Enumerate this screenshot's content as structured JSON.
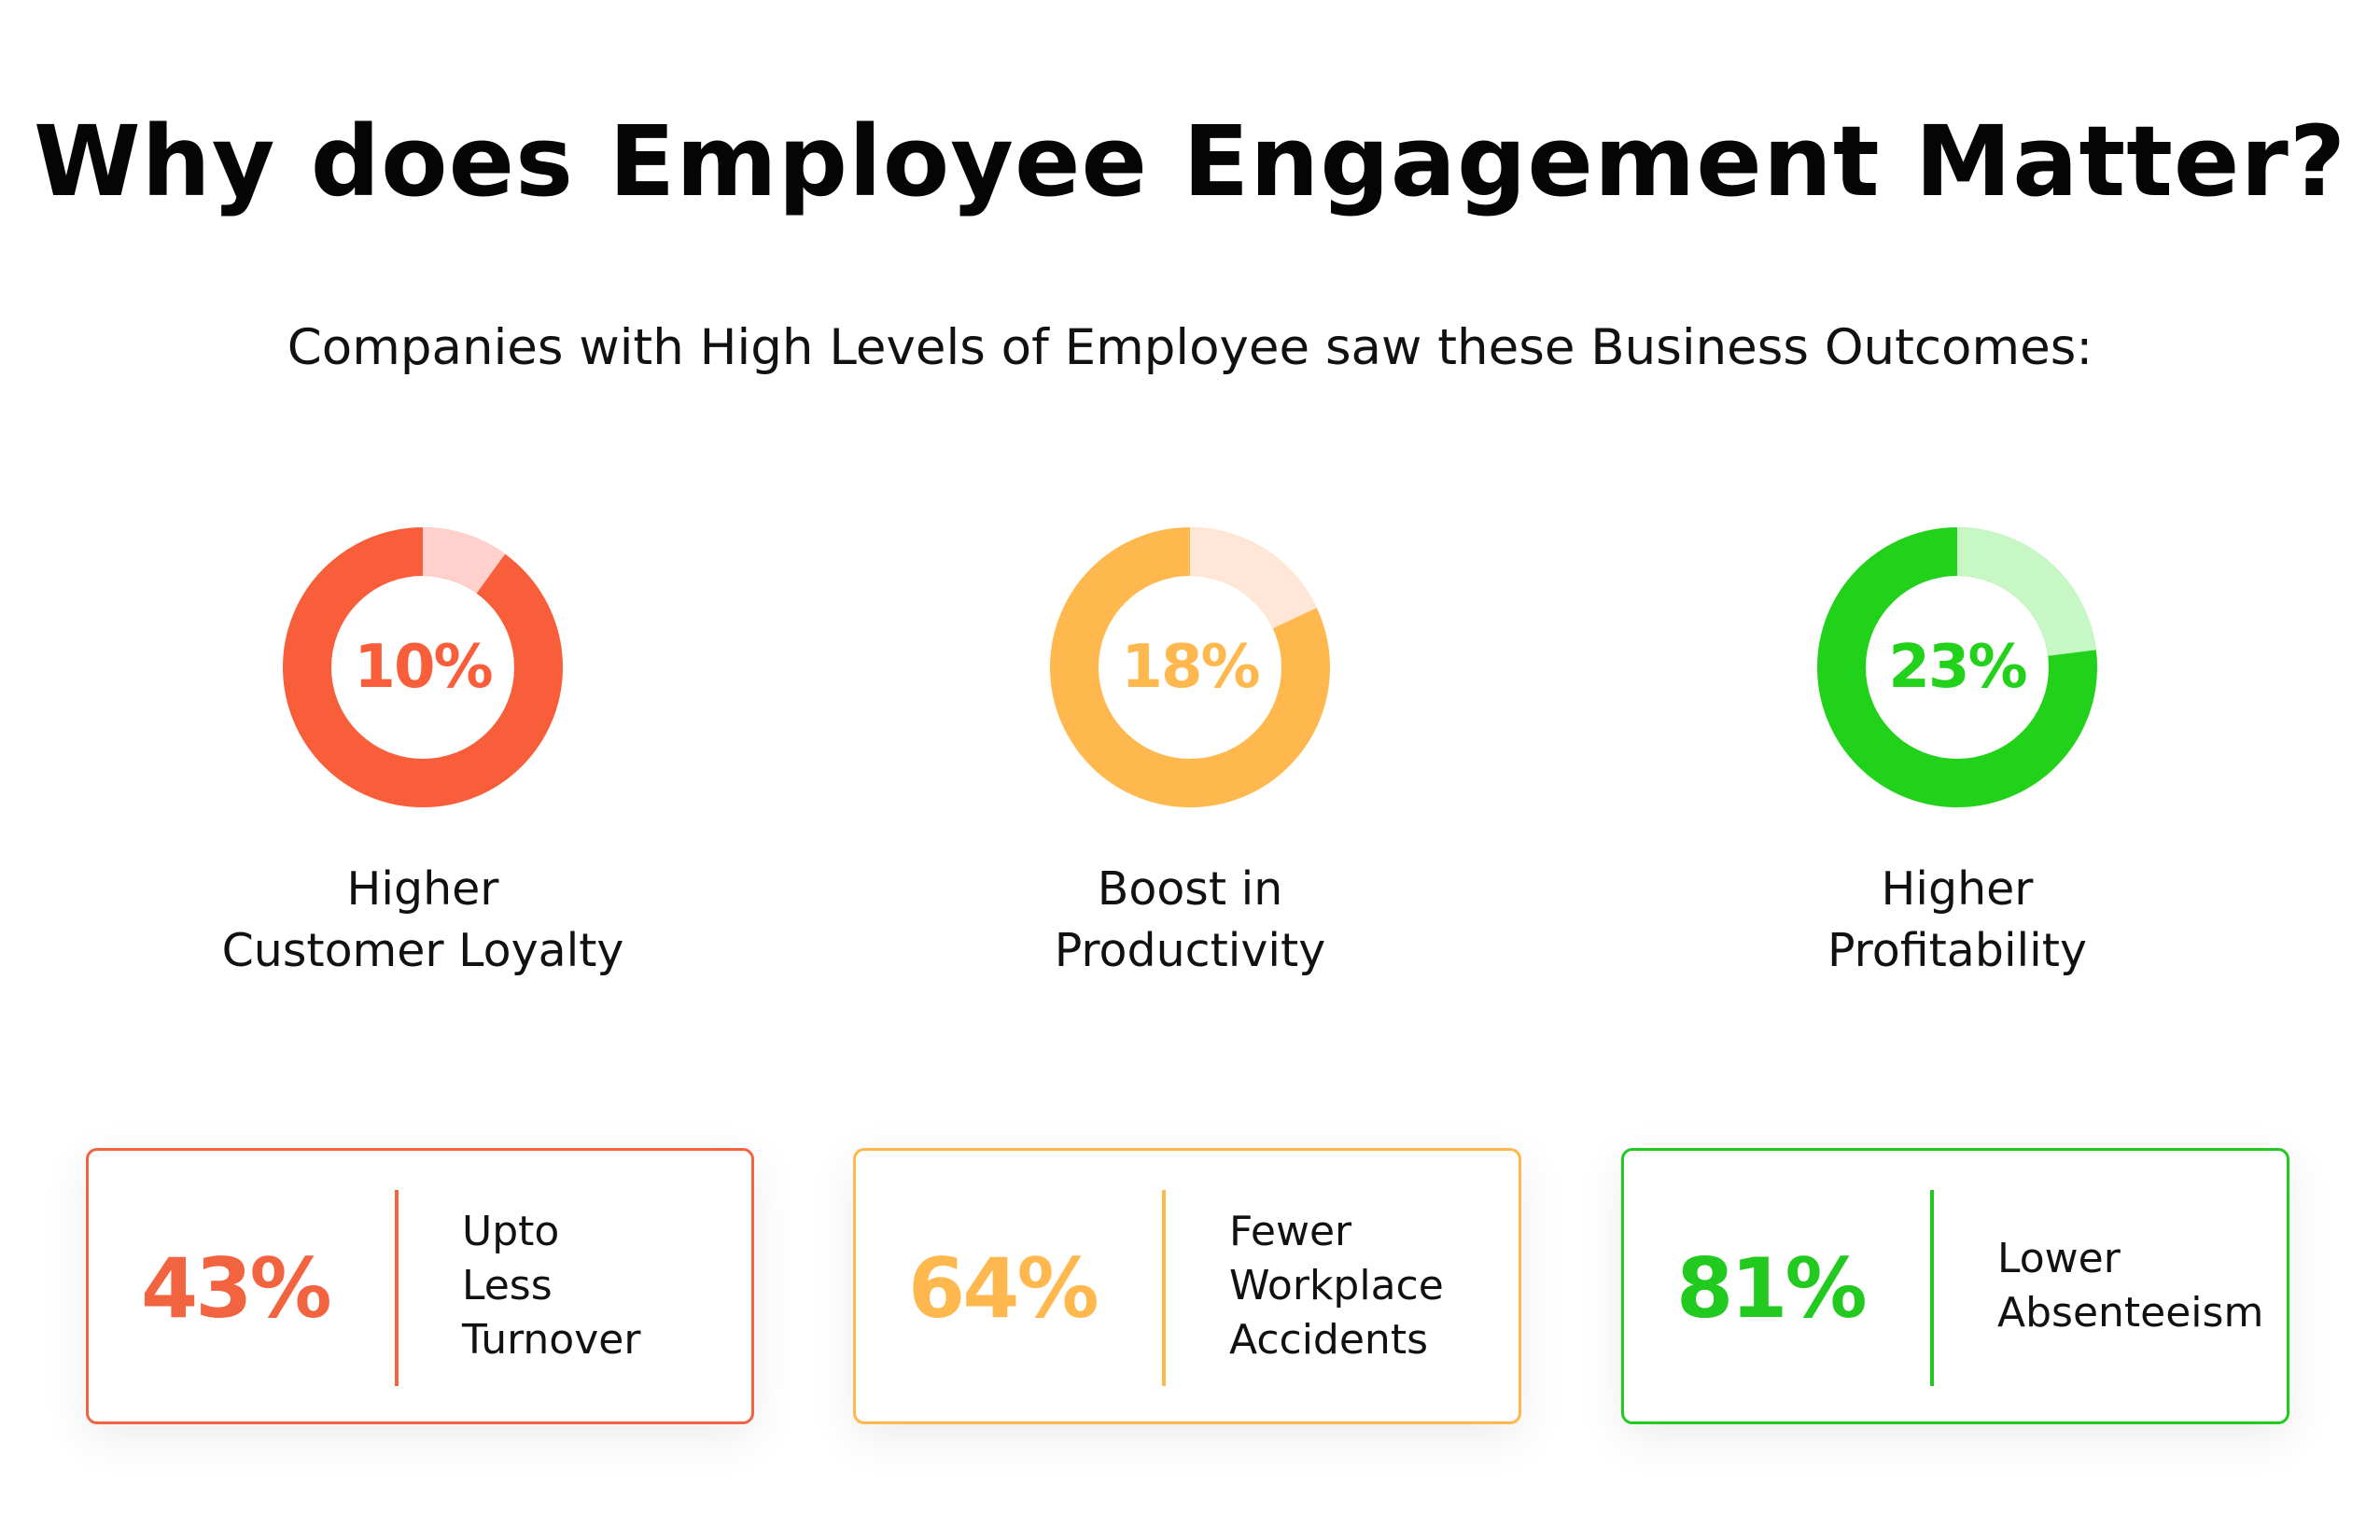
{
  "title": "Why does Employee Engagement Matter?",
  "subtitle": "Companies with High Levels of Employee saw these Business Outcomes:",
  "donuts": [
    {
      "value": "10%",
      "percent": 10,
      "label_lines": [
        "Higher",
        "Customer Loyalty"
      ],
      "color": "#F95E3A",
      "light_color": "#FFD0CC"
    },
    {
      "value": "18%",
      "percent": 18,
      "label_lines": [
        "Boost in",
        "Productivity"
      ],
      "color": "#FFB84D",
      "light_color": "#FFE6D6"
    },
    {
      "value": "23%",
      "percent": 23,
      "label_lines": [
        "Higher",
        "Profitability"
      ],
      "color": "#22D11A",
      "light_color": "#C8F7C6"
    }
  ],
  "cards": [
    {
      "value": "43%",
      "text_lines": [
        "Upto",
        "Less",
        "Turnover"
      ],
      "color": "#F26340"
    },
    {
      "value": "64%",
      "text_lines": [
        "Fewer",
        "Workplace",
        "Accidents"
      ],
      "color": "#FFB84D"
    },
    {
      "value": "81%",
      "text_lines": [
        "Lower",
        "Absenteeism"
      ],
      "color": "#22C91E"
    }
  ]
}
